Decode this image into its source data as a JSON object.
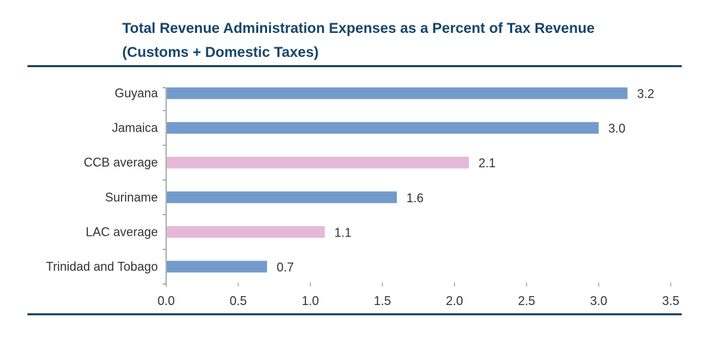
{
  "chart_data": {
    "type": "bar",
    "orientation": "horizontal",
    "title": "Total Revenue Administration Expenses as a Percent of Tax Revenue",
    "subtitle": "(Customs + Domestic Taxes)",
    "categories": [
      "Guyana",
      "Jamaica",
      "CCB average",
      "Suriname",
      "LAC average",
      "Trinidad and Tobago"
    ],
    "values": [
      3.2,
      3.0,
      2.1,
      1.6,
      1.1,
      0.7
    ],
    "data_labels": [
      "3.2",
      "3.0",
      "2.1",
      "1.6",
      "1.1",
      "0.7"
    ],
    "bar_colors": [
      "#729bcb",
      "#729bcb",
      "#e6b8d7",
      "#729bcb",
      "#e6b8d7",
      "#729bcb"
    ],
    "xlim": [
      0,
      3.5
    ],
    "xticks": [
      "0.0",
      "0.5",
      "1.0",
      "1.5",
      "2.0",
      "2.5",
      "3.0",
      "3.5"
    ],
    "xlabel": "",
    "ylabel": "",
    "grid": false,
    "legend": "none",
    "title_color": "#17466b"
  }
}
